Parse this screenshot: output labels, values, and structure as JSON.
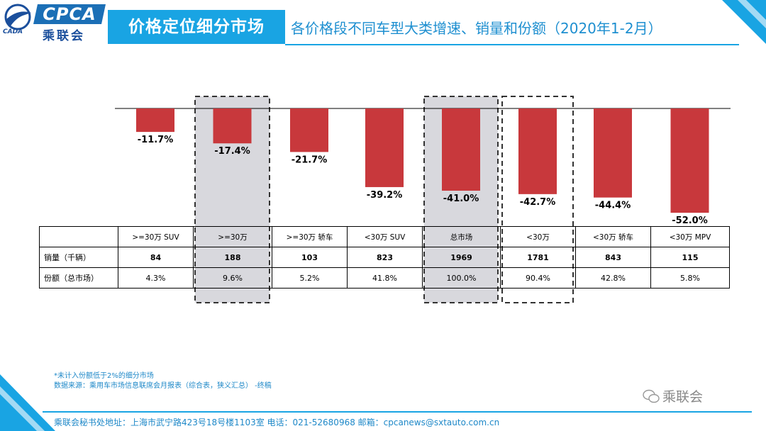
{
  "header": {
    "logo_text": "CPCA",
    "logo_cn": "乘联会",
    "logo_small": "CADA",
    "title": "价格定位细分市场",
    "subtitle": "各价格段不同车型大类增速、销量和份额（2020年1-2月）"
  },
  "chart_data": {
    "type": "bar",
    "categories": [
      ">=30万 SUV",
      ">=30万",
      ">=30万 轿车",
      "<30万 SUV",
      "总市场",
      "<30万",
      "<30万 轿车",
      "<30万 MPV"
    ],
    "values": [
      -11.7,
      -17.4,
      -21.7,
      -39.2,
      -41.0,
      -42.7,
      -44.4,
      -52.0
    ],
    "value_labels": [
      "-11.7%",
      "-17.4%",
      "-21.7%",
      "-39.2%",
      "-41.0%",
      "-42.7%",
      "-44.4%",
      "-52.0%"
    ],
    "ylim": [
      -55,
      0
    ],
    "bar_color": "#c8383c",
    "highlight_fill": "#d8d8dd",
    "highlight_categories": [
      ">=30万",
      "总市场",
      "<30万"
    ],
    "shaded_categories": [
      ">=30万",
      "总市场"
    ]
  },
  "table": {
    "headers": [
      ">=30万 SUV",
      ">=30万",
      ">=30万 轿车",
      "<30万 SUV",
      "总市场",
      "<30万",
      "<30万 轿车",
      "<30万 MPV"
    ],
    "rows": [
      {
        "label": "销量（千辆）",
        "values": [
          "84",
          "188",
          "103",
          "823",
          "1969",
          "1781",
          "843",
          "115"
        ]
      },
      {
        "label": "份额（总市场）",
        "values": [
          "4.3%",
          "9.6%",
          "5.2%",
          "41.8%",
          "100.0%",
          "90.4%",
          "42.8%",
          "5.8%"
        ]
      }
    ]
  },
  "footnote": {
    "line1": "*未计入份额低于2%的细分市场",
    "line2": "数据来源：乘用车市场信息联席会月报表（综合表，狭义汇总） -终稿"
  },
  "watermark": "乘联会",
  "footer": "乘联会秘书处地址：上海市武宁路423号18号楼1103室 电话：021-52680968 邮箱：cpcanews@sxtauto.com.cn",
  "colors": {
    "accent": "#19a4e3",
    "brand": "#1b6fb6",
    "bar": "#c8383c"
  }
}
